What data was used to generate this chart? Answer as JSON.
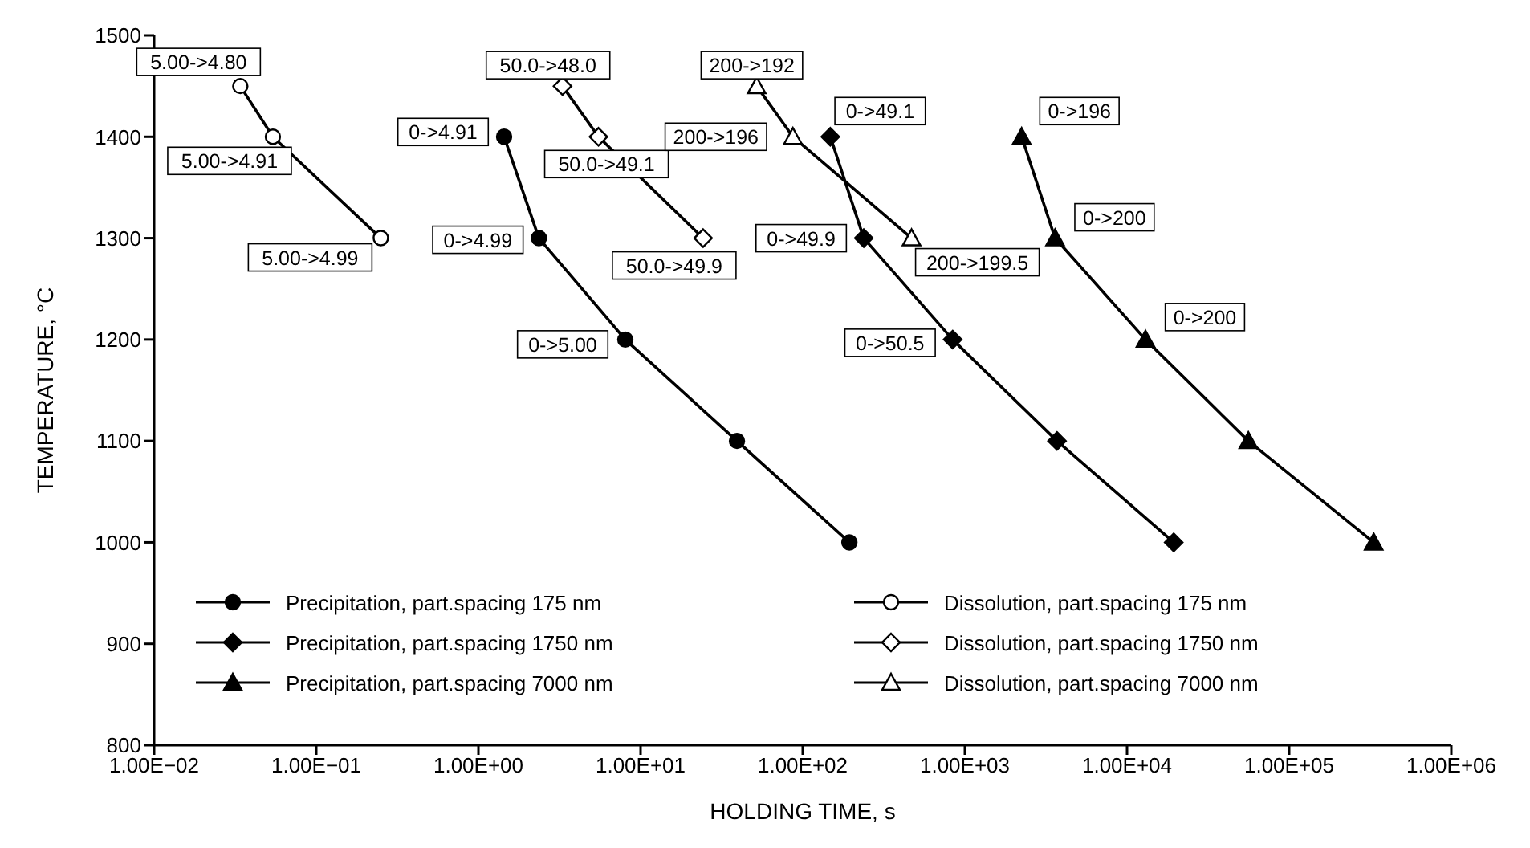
{
  "chart_data": {
    "type": "line",
    "xlabel": "HOLDING TIME, s",
    "ylabel": "TEMPERATURE, °C",
    "log": "x",
    "grid": false,
    "legend": "bottom left",
    "line_style": "solid",
    "xlim": [
      0.01,
      1000000
    ],
    "xticks": [
      {
        "value": 0.01,
        "label": "1.00E−02"
      },
      {
        "value": 0.1,
        "label": "1.00E−01"
      },
      {
        "value": 1,
        "label": "1.00E+00"
      },
      {
        "value": 10,
        "label": "1.00E+01"
      },
      {
        "value": 100,
        "label": "1.00E+02"
      },
      {
        "value": 1000,
        "label": "1.00E+03"
      },
      {
        "value": 10000,
        "label": "1.00E+04"
      },
      {
        "value": 100000,
        "label": "1.00E+05"
      },
      {
        "value": 1000000,
        "label": "1.00E+06"
      }
    ],
    "ylim": [
      800,
      1500
    ],
    "yticks": [
      800,
      900,
      1000,
      1100,
      1200,
      1300,
      1400,
      1500
    ],
    "series": [
      {
        "name": "Precipitation, part.spacing 175 nm",
        "color": "#000000",
        "marker": "circle",
        "x": [
          1.44,
          2.36,
          8.05,
          39.3,
          194
        ],
        "values": [
          1400,
          1300,
          1200,
          1100,
          1000
        ]
      },
      {
        "name": "Dissolution, part.spacing 175 nm",
        "color": "#000000",
        "colors": [
          "#ffffff",
          "#ffffff",
          "#ffffff"
        ],
        "marker": "circle",
        "x": [
          0.034,
          0.054,
          0.25
        ],
        "values": [
          1450,
          1400,
          1300
        ]
      },
      {
        "name": "Precipitation, part.spacing 1750 nm",
        "color": "#000000",
        "marker": "diamond",
        "x": [
          148,
          238,
          841,
          3700,
          19400
        ],
        "values": [
          1400,
          1300,
          1200,
          1100,
          1000
        ]
      },
      {
        "name": "Dissolution, part.spacing 1750 nm",
        "color": "#000000",
        "colors": [
          "#ffffff",
          "#ffffff",
          "#ffffff"
        ],
        "marker": "diamond",
        "x": [
          3.3,
          5.5,
          24.3
        ],
        "values": [
          1450,
          1400,
          1300
        ]
      },
      {
        "name": "Precipitation, part.spacing 7000 nm",
        "color": "#000000",
        "marker": "triangle",
        "x": [
          2240,
          3600,
          13000,
          56000,
          332000
        ],
        "values": [
          1400,
          1300,
          1200,
          1100,
          1000
        ]
      },
      {
        "name": "Dissolution, part.spacing 7000 nm",
        "color": "#000000",
        "colors": [
          "#ffffff",
          "#ffffff",
          "#ffffff"
        ],
        "marker": "triangle",
        "x": [
          52,
          87,
          469
        ],
        "values": [
          1450,
          1400,
          1300
        ]
      }
    ],
    "annotations": [
      {
        "text": "5.00->4.80",
        "x": 0.034,
        "y": 1450
      },
      {
        "text": "5.00->4.91",
        "x": 0.054,
        "y": 1400
      },
      {
        "text": "5.00->4.99",
        "x": 0.25,
        "y": 1300
      },
      {
        "text": "50.0->48.0",
        "x": 3.3,
        "y": 1450
      },
      {
        "text": "50.0->49.1",
        "x": 5.5,
        "y": 1400
      },
      {
        "text": "50.0->49.9",
        "x": 24.3,
        "y": 1300
      },
      {
        "text": "200->192",
        "x": 52,
        "y": 1450
      },
      {
        "text": "200->196",
        "x": 87,
        "y": 1400
      },
      {
        "text": "200->199.5",
        "x": 469,
        "y": 1300
      },
      {
        "text": "0->4.91",
        "x": 1.44,
        "y": 1400
      },
      {
        "text": "0->4.99",
        "x": 2.36,
        "y": 1300
      },
      {
        "text": "0->5.00",
        "x": 8.05,
        "y": 1200
      },
      {
        "text": "0->49.1",
        "x": 148,
        "y": 1400
      },
      {
        "text": "0->49.9",
        "x": 238,
        "y": 1300
      },
      {
        "text": "0->50.5",
        "x": 841,
        "y": 1200
      },
      {
        "text": "0->196",
        "x": 2240,
        "y": 1400
      },
      {
        "text": "0->200",
        "x": 3600,
        "y": 1300
      },
      {
        "text": "0->200",
        "x": 13000,
        "y": 1200
      }
    ]
  }
}
